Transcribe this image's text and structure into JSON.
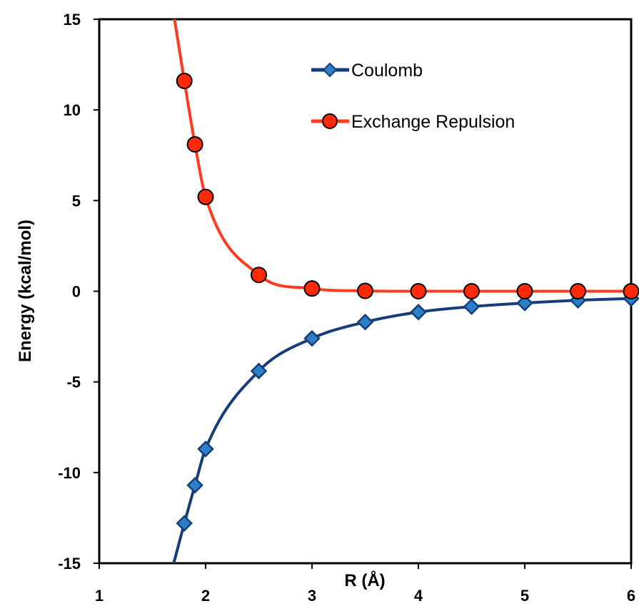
{
  "chart_data": {
    "type": "line",
    "xlabel": "R (Å)",
    "ylabel": "Energy (kcal/mol)",
    "xlim": [
      1,
      6
    ],
    "ylim": [
      -15,
      15
    ],
    "xticks": [
      "1",
      "2",
      "3",
      "4",
      "5",
      "6"
    ],
    "yticks": [
      "15",
      "10",
      "5",
      "0",
      "-5",
      "-10",
      "-15"
    ],
    "grid": false,
    "legend_position": "top-right",
    "series": [
      {
        "name": "Coulomb",
        "color": "#163d7a",
        "marker": "diamond",
        "marker_color": "#2b7fc6",
        "x": [
          1.8,
          1.9,
          2.0,
          2.5,
          3.0,
          3.5,
          4.0,
          4.5,
          5.0,
          5.5,
          6.0
        ],
        "y": [
          -12.8,
          -10.7,
          -8.7,
          -4.4,
          -2.6,
          -1.7,
          -1.15,
          -0.85,
          -0.65,
          -0.5,
          -0.4
        ]
      },
      {
        "name": "Exchange Repulsion",
        "color": "#ff3b1f",
        "marker": "circle",
        "marker_color": "#ff2a0a",
        "x": [
          1.8,
          1.9,
          2.0,
          2.5,
          3.0,
          3.5,
          4.0,
          4.5,
          5.0,
          5.5,
          6.0
        ],
        "y": [
          11.6,
          8.1,
          5.2,
          0.9,
          0.15,
          0.02,
          0.0,
          0.0,
          0.0,
          0.0,
          0.0
        ]
      }
    ]
  }
}
